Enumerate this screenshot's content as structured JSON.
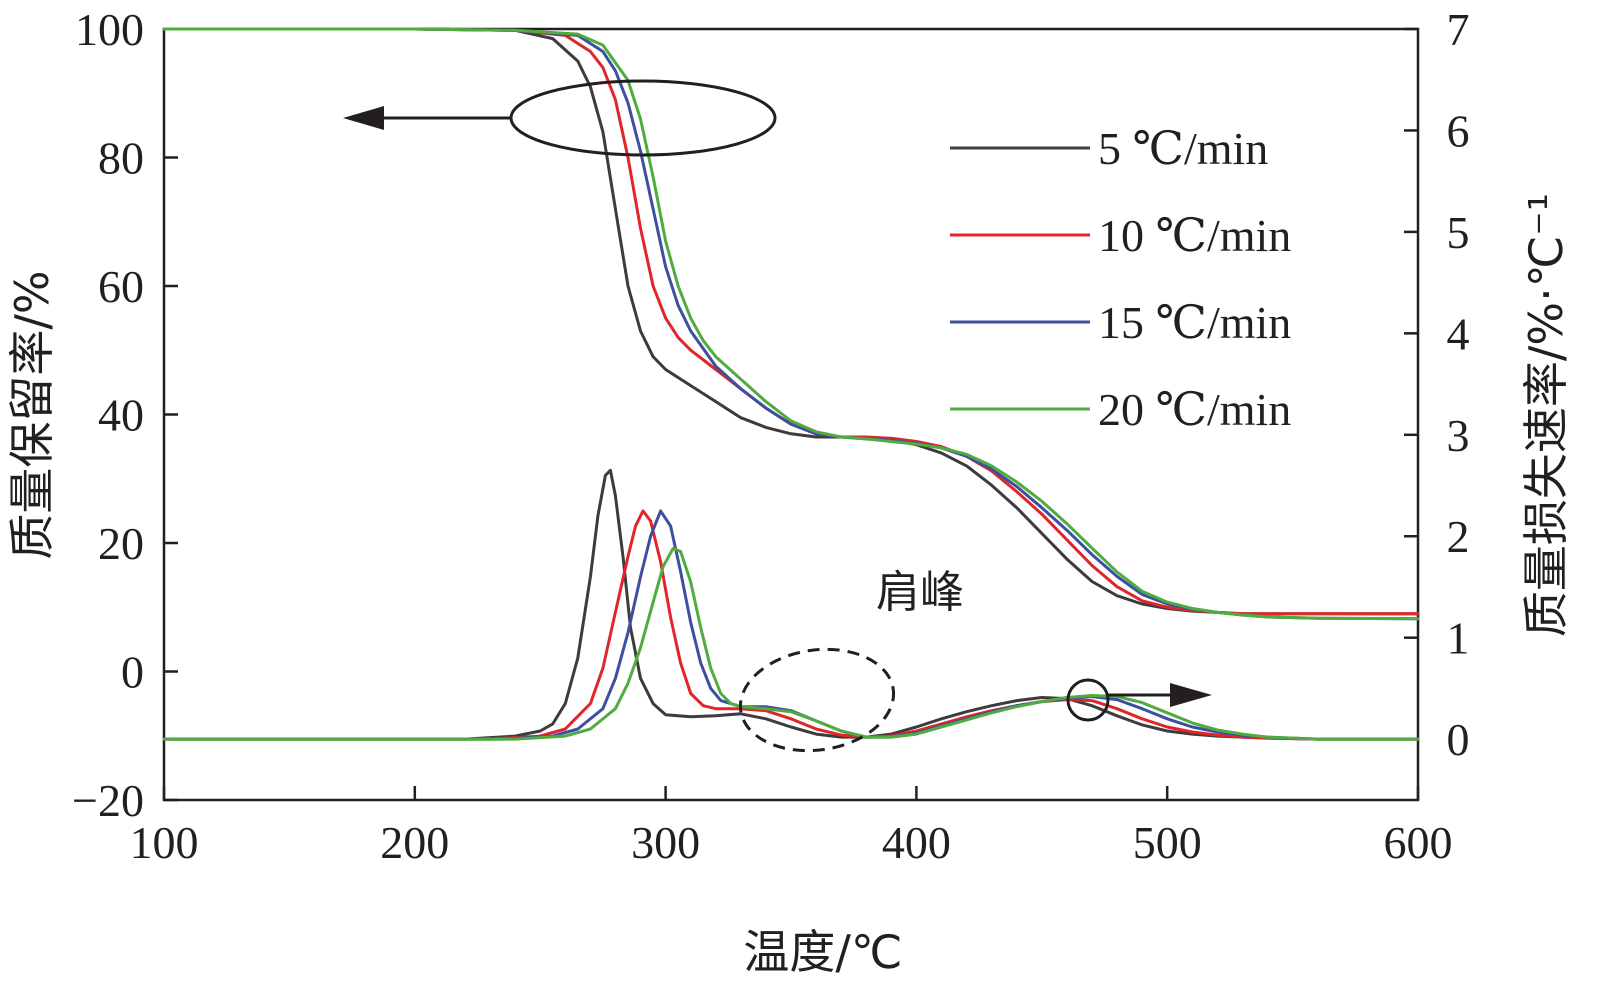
{
  "chart_data": {
    "type": "line",
    "xlabel": "温度/℃",
    "ylabel_left": "质量保留率/%",
    "ylabel_right": "质量损失速率/%·℃⁻¹",
    "xlim": [
      100,
      600
    ],
    "ylim_left": [
      -20,
      100
    ],
    "ylim_right": [
      -0.6,
      7
    ],
    "x_ticks": [
      "100",
      "200",
      "300",
      "400",
      "500",
      "600"
    ],
    "y_left_ticks": [
      "−20",
      "0",
      "20",
      "40",
      "60",
      "80",
      "100"
    ],
    "y_right_ticks": [
      "0",
      "1",
      "2",
      "3",
      "4",
      "5",
      "6",
      "7"
    ],
    "legend_position": "upper-right",
    "colors": {
      "5": "#3d3b3c",
      "10": "#e0262a",
      "15": "#3d4fa0",
      "20": "#4fac3f"
    },
    "series": [
      {
        "name": "5 ℃/min",
        "color": "#3d3b3c",
        "axis": "left",
        "x": [
          100,
          200,
          240,
          255,
          265,
          270,
          275,
          280,
          285,
          290,
          295,
          300,
          310,
          320,
          330,
          340,
          350,
          360,
          370,
          380,
          390,
          400,
          410,
          420,
          430,
          440,
          450,
          460,
          470,
          480,
          490,
          500,
          510,
          520,
          530,
          540,
          560,
          600
        ],
        "values": [
          100,
          100,
          99.8,
          98.5,
          95,
          91,
          84,
          72,
          60,
          53,
          49,
          47,
          44.5,
          42,
          39.5,
          38,
          37,
          36.5,
          36.5,
          36.3,
          36,
          35.3,
          34,
          32,
          29,
          25.5,
          21.5,
          17.5,
          14,
          11.8,
          10.5,
          9.8,
          9.4,
          9.2,
          9,
          9,
          9,
          9
        ]
      },
      {
        "name": "10 ℃/min",
        "color": "#e0262a",
        "axis": "left",
        "x": [
          100,
          200,
          240,
          260,
          270,
          275,
          280,
          285,
          290,
          295,
          300,
          305,
          310,
          320,
          330,
          340,
          350,
          360,
          370,
          380,
          390,
          400,
          410,
          420,
          430,
          440,
          450,
          460,
          470,
          480,
          490,
          500,
          510,
          520,
          530,
          540,
          560,
          600
        ],
        "values": [
          100,
          100,
          99.8,
          99,
          96.5,
          94,
          89,
          80,
          69,
          60,
          55,
          52,
          50,
          47,
          44,
          41,
          38.5,
          37,
          36.5,
          36.5,
          36.3,
          35.8,
          35,
          33.5,
          31.2,
          28,
          24.5,
          20.5,
          16.5,
          13.2,
          11,
          10,
          9.5,
          9.2,
          9,
          9,
          9,
          9
        ]
      },
      {
        "name": "15 ℃/min",
        "color": "#3d4fa0",
        "axis": "left",
        "x": [
          100,
          200,
          240,
          265,
          275,
          280,
          285,
          290,
          295,
          300,
          305,
          310,
          320,
          330,
          340,
          350,
          360,
          370,
          380,
          390,
          400,
          410,
          420,
          430,
          440,
          450,
          460,
          470,
          480,
          490,
          500,
          510,
          520,
          530,
          540,
          560,
          600
        ],
        "values": [
          100,
          100,
          99.8,
          99,
          96.5,
          93.5,
          88.5,
          81,
          72,
          63,
          57,
          53,
          47.5,
          44,
          41,
          38.5,
          37,
          36.5,
          36.2,
          36,
          35.5,
          34.8,
          33.5,
          31.5,
          28.8,
          25.5,
          22,
          18.2,
          14.8,
          12,
          10.5,
          9.7,
          9.2,
          8.8,
          8.5,
          8.3,
          8.2
        ]
      },
      {
        "name": "20 ℃/min",
        "color": "#4fac3f",
        "axis": "left",
        "x": [
          100,
          200,
          240,
          265,
          275,
          285,
          290,
          295,
          300,
          305,
          310,
          315,
          320,
          330,
          340,
          350,
          360,
          370,
          380,
          390,
          400,
          410,
          420,
          430,
          440,
          450,
          460,
          470,
          480,
          490,
          500,
          510,
          520,
          530,
          540,
          560,
          600
        ],
        "values": [
          100,
          100,
          99.8,
          99.2,
          97.5,
          92,
          86,
          77,
          67,
          60,
          55,
          51.5,
          49,
          45.5,
          42,
          39,
          37.3,
          36.5,
          36.2,
          35.8,
          35.4,
          34.8,
          33.8,
          32,
          29.5,
          26.5,
          23,
          19.2,
          15.5,
          12.5,
          10.8,
          9.8,
          9.2,
          8.8,
          8.5,
          8.3,
          8.2
        ]
      },
      {
        "name": "5 ℃/min",
        "color": "#3d3b3c",
        "axis": "right",
        "x": [
          100,
          220,
          240,
          250,
          255,
          260,
          265,
          270,
          273,
          276,
          278,
          280,
          283,
          286,
          290,
          295,
          300,
          310,
          320,
          330,
          340,
          350,
          360,
          370,
          380,
          390,
          400,
          410,
          420,
          430,
          440,
          450,
          460,
          470,
          480,
          490,
          500,
          510,
          520,
          540,
          560,
          600
        ],
        "values": [
          0,
          0,
          0.03,
          0.08,
          0.15,
          0.35,
          0.8,
          1.6,
          2.2,
          2.6,
          2.65,
          2.4,
          1.8,
          1.1,
          0.6,
          0.35,
          0.24,
          0.22,
          0.23,
          0.25,
          0.2,
          0.12,
          0.05,
          0.02,
          0.02,
          0.05,
          0.12,
          0.2,
          0.27,
          0.33,
          0.38,
          0.41,
          0.4,
          0.33,
          0.23,
          0.14,
          0.08,
          0.05,
          0.03,
          0.01,
          0,
          0
        ]
      },
      {
        "name": "10 ℃/min",
        "color": "#e0262a",
        "axis": "right",
        "x": [
          100,
          230,
          250,
          260,
          270,
          275,
          280,
          285,
          288,
          291,
          294,
          298,
          302,
          306,
          310,
          315,
          320,
          330,
          340,
          350,
          360,
          370,
          380,
          390,
          400,
          410,
          420,
          430,
          440,
          450,
          460,
          470,
          480,
          490,
          500,
          510,
          520,
          530,
          540,
          560,
          600
        ],
        "values": [
          0,
          0,
          0.03,
          0.1,
          0.35,
          0.7,
          1.25,
          1.8,
          2.1,
          2.25,
          2.15,
          1.75,
          1.2,
          0.75,
          0.45,
          0.33,
          0.3,
          0.3,
          0.28,
          0.2,
          0.1,
          0.04,
          0.02,
          0.03,
          0.08,
          0.15,
          0.22,
          0.28,
          0.33,
          0.37,
          0.39,
          0.38,
          0.3,
          0.2,
          0.12,
          0.07,
          0.04,
          0.02,
          0.01,
          0,
          0
        ]
      },
      {
        "name": "15 ℃/min",
        "color": "#3d4fa0",
        "axis": "right",
        "x": [
          100,
          235,
          255,
          265,
          275,
          280,
          285,
          290,
          294,
          298,
          302,
          306,
          310,
          314,
          318,
          322,
          330,
          340,
          350,
          360,
          370,
          380,
          390,
          400,
          410,
          420,
          430,
          440,
          450,
          460,
          470,
          480,
          490,
          500,
          510,
          520,
          530,
          540,
          560,
          600
        ],
        "values": [
          0,
          0,
          0.03,
          0.1,
          0.3,
          0.6,
          1.05,
          1.6,
          2.0,
          2.25,
          2.1,
          1.65,
          1.15,
          0.75,
          0.5,
          0.38,
          0.32,
          0.32,
          0.28,
          0.18,
          0.08,
          0.02,
          0.02,
          0.06,
          0.13,
          0.2,
          0.27,
          0.33,
          0.37,
          0.4,
          0.42,
          0.39,
          0.3,
          0.2,
          0.12,
          0.07,
          0.04,
          0.02,
          0,
          0
        ]
      },
      {
        "name": "20 ℃/min",
        "color": "#4fac3f",
        "axis": "right",
        "x": [
          100,
          240,
          260,
          270,
          280,
          285,
          290,
          295,
          299,
          303,
          306,
          310,
          314,
          318,
          322,
          326,
          330,
          340,
          350,
          360,
          370,
          380,
          390,
          400,
          410,
          420,
          430,
          440,
          450,
          460,
          470,
          480,
          490,
          500,
          510,
          520,
          530,
          540,
          560,
          600
        ],
        "values": [
          0,
          0,
          0.03,
          0.1,
          0.3,
          0.55,
          0.9,
          1.35,
          1.7,
          1.88,
          1.85,
          1.55,
          1.1,
          0.7,
          0.45,
          0.35,
          0.32,
          0.3,
          0.27,
          0.18,
          0.08,
          0.02,
          0.02,
          0.05,
          0.12,
          0.19,
          0.26,
          0.32,
          0.37,
          0.41,
          0.43,
          0.42,
          0.36,
          0.26,
          0.16,
          0.09,
          0.05,
          0.02,
          0,
          0
        ]
      }
    ],
    "annotations": {
      "shoulder_label": "肩峰"
    }
  }
}
